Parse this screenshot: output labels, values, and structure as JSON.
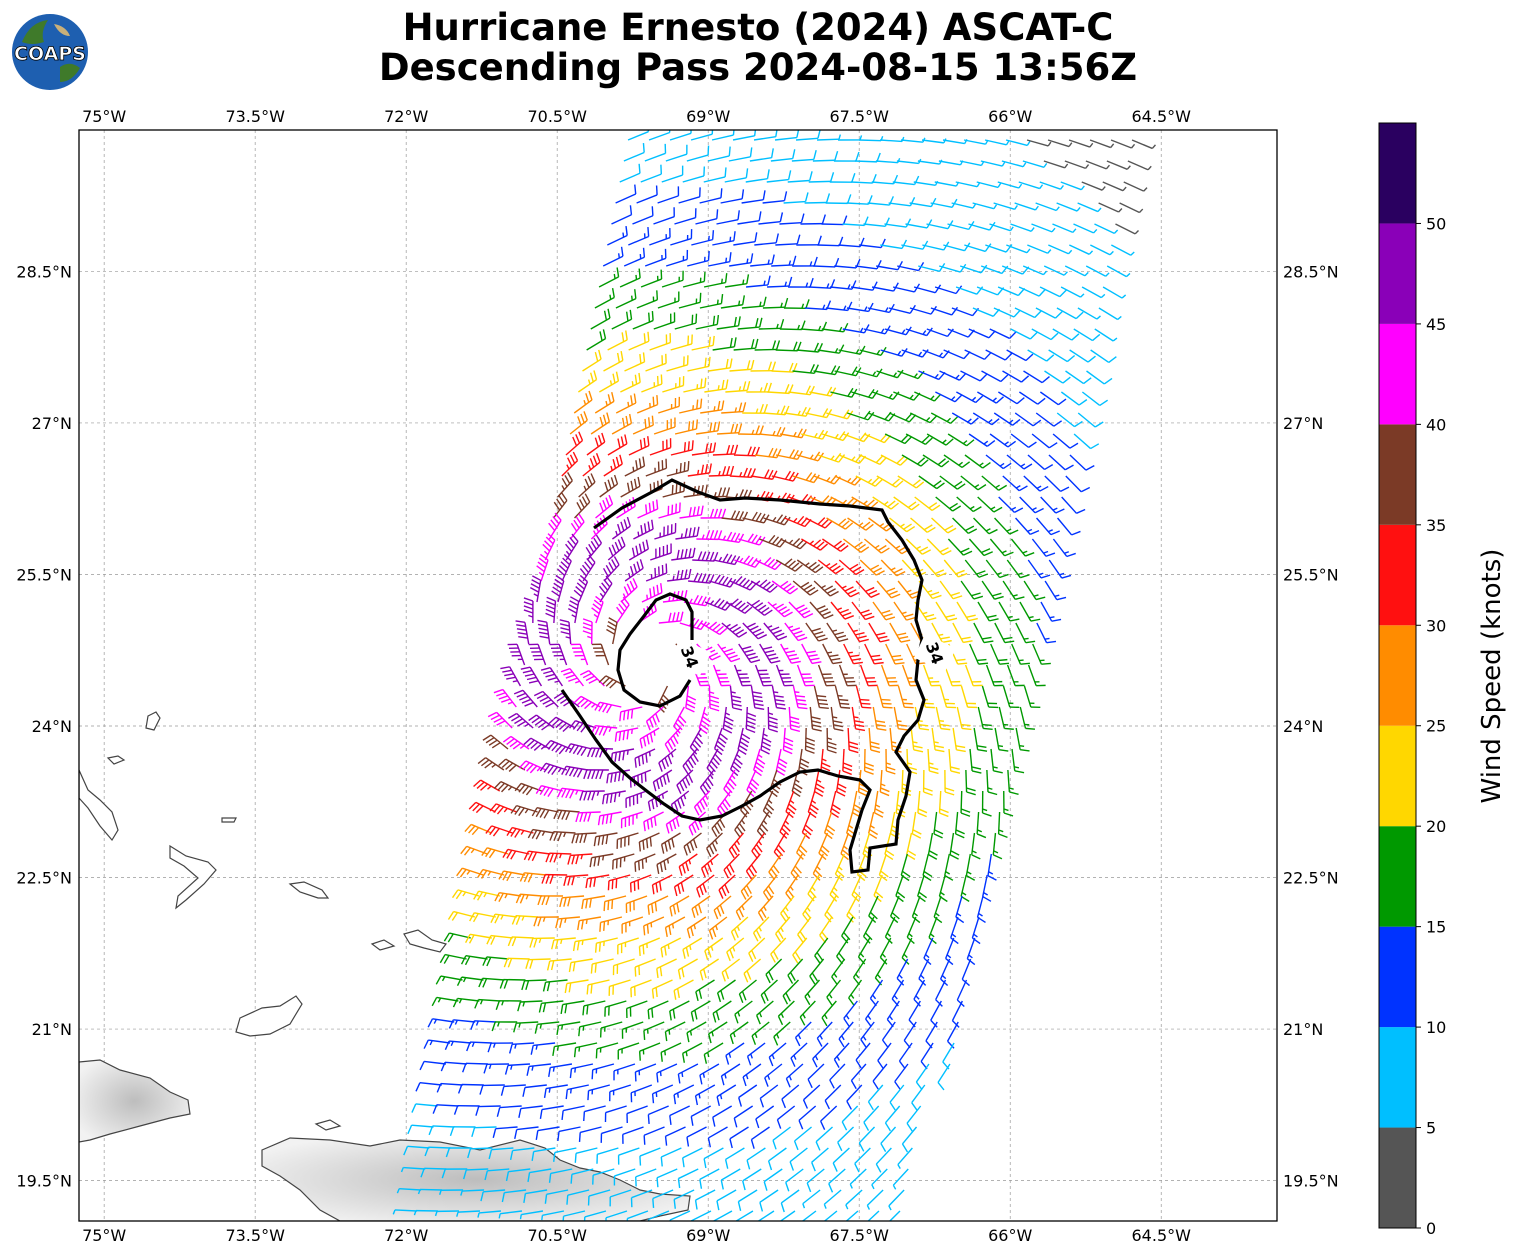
{
  "title": {
    "line1": "Hurricane Ernesto (2024) ASCAT-C",
    "line2": "Descending Pass 2024-08-15 13:56Z"
  },
  "logo": {
    "text": "COAPS",
    "icon": "globe-logo"
  },
  "axes": {
    "lon_ticks": [
      "75°W",
      "73.5°W",
      "72°W",
      "70.5°W",
      "69°W",
      "67.5°W",
      "66°W",
      "64.5°W"
    ],
    "lat_ticks": [
      "28.5°N",
      "27°N",
      "25.5°N",
      "24°N",
      "22.5°N",
      "21°N",
      "19.5°N"
    ]
  },
  "colorbar": {
    "label": "Wind Speed (knots)",
    "ticks": [
      "0",
      "5",
      "10",
      "15",
      "20",
      "25",
      "30",
      "35",
      "40",
      "45",
      "50"
    ],
    "colors": [
      "#555555",
      "#00bfff",
      "#0033ff",
      "#009900",
      "#ffd700",
      "#ff8c00",
      "#ff1010",
      "#7b3a26",
      "#ff00ff",
      "#8a00b8",
      "#2a0060"
    ]
  },
  "contour_label": "34",
  "chart_data": {
    "type": "scatter",
    "title": "Hurricane Ernesto (2024) ASCAT-C Descending Pass 2024-08-15 13:56Z",
    "xlabel": "",
    "ylabel": "",
    "xlim": [
      -75.25,
      -63.35
    ],
    "ylim": [
      19.1,
      29.9
    ],
    "storm_center": {
      "lon": -69.6,
      "lat": 24.6
    },
    "max_wind_knots": 50,
    "wind_contour_knots": 34,
    "grid": true,
    "colorbar_label": "Wind Speed (knots)"
  }
}
